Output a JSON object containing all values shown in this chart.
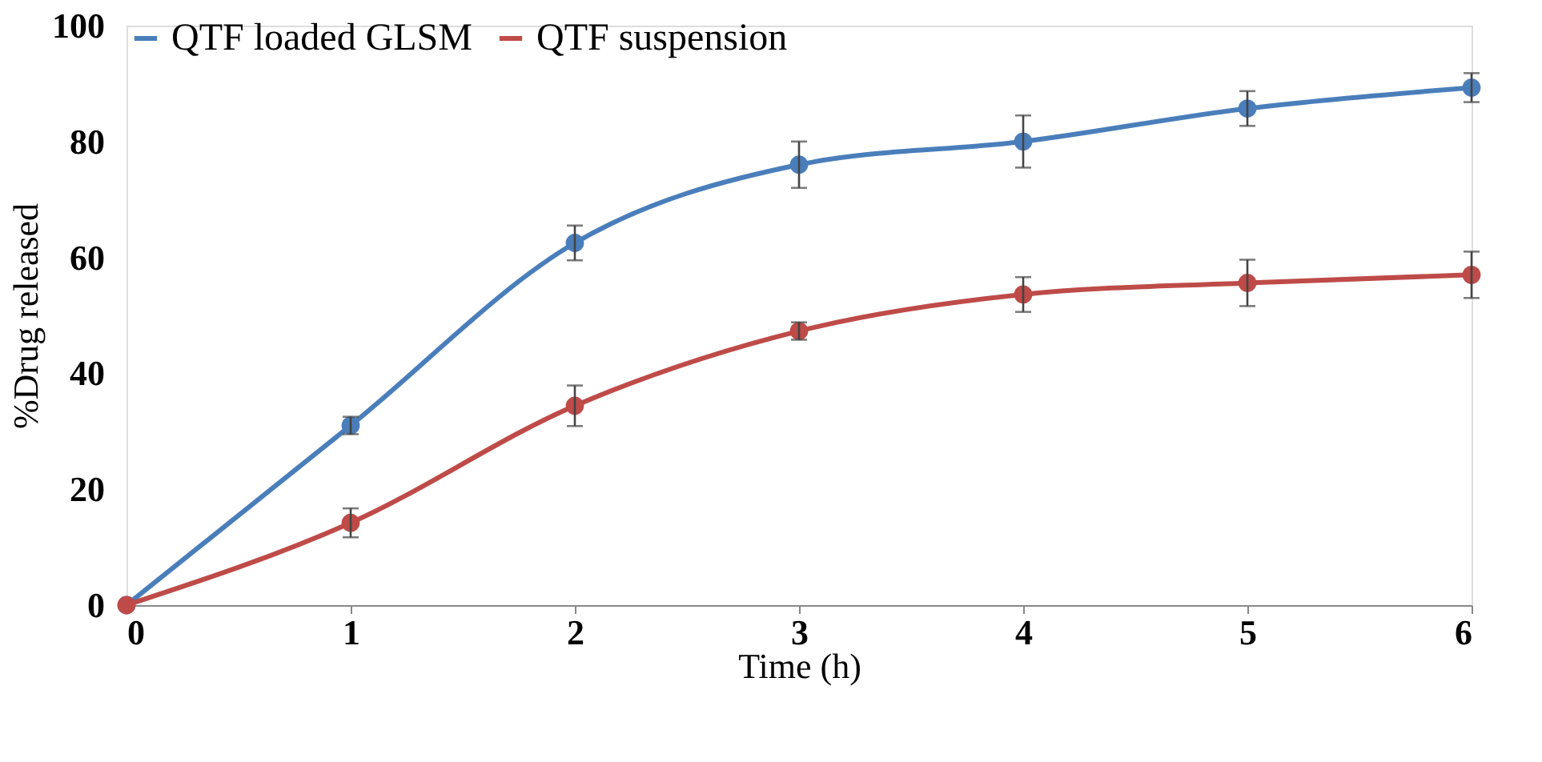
{
  "chart_data": {
    "type": "line",
    "xlabel": "Time (h)",
    "ylabel": "%Drug released",
    "x": [
      0,
      1,
      2,
      3,
      4,
      5,
      6
    ],
    "series": [
      {
        "name": "QTF loaded GLSM",
        "color": "#4a7ebb",
        "values": [
          0,
          31,
          62.5,
          76,
          80,
          85.7,
          89.3
        ],
        "errors": [
          null,
          1.5,
          3,
          4,
          4.5,
          3,
          2.5
        ]
      },
      {
        "name": "QTF suspension",
        "color": "#be4b48",
        "values": [
          0,
          14.2,
          34.4,
          47.3,
          53.6,
          55.6,
          57
        ],
        "errors": [
          null,
          2.5,
          3.5,
          1.5,
          3,
          4,
          4
        ]
      }
    ],
    "xlim": [
      0,
      6
    ],
    "xticks": [
      0,
      1,
      2,
      3,
      4,
      5,
      6
    ],
    "ylim": [
      0,
      100
    ],
    "yticks": [
      0,
      20,
      40,
      60,
      80,
      100
    ],
    "grid": false,
    "legend": "top",
    "marker": "circle",
    "line_style": "solid"
  }
}
